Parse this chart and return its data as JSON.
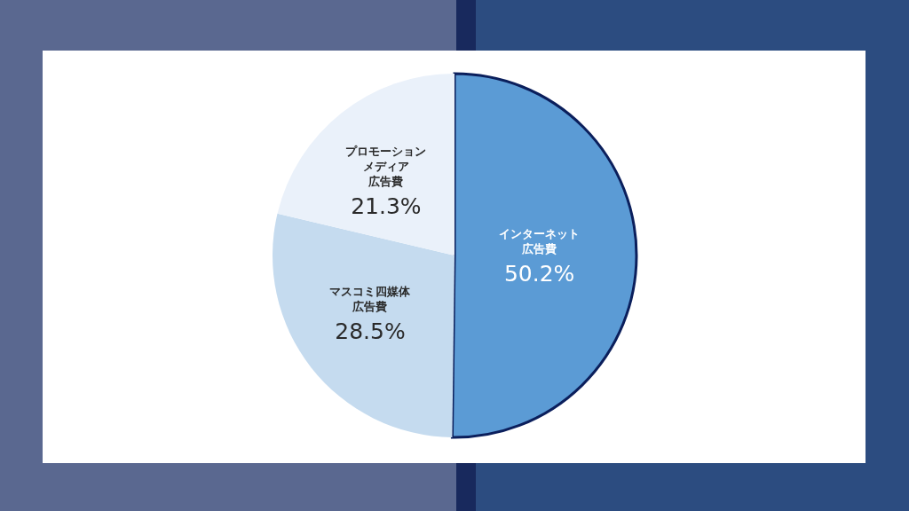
{
  "chart_data": {
    "type": "pie",
    "categories": [
      "インターネット広告費",
      "マスコミ四媒体広告費",
      "プロモーションメディア広告費"
    ],
    "values": [
      50.2,
      28.5,
      21.3
    ],
    "colors": [
      "#5b9bd5",
      "#c5dbef",
      "#eaf1fa"
    ],
    "value_labels": [
      "50.2%",
      "28.5%",
      "21.3%"
    ]
  }
}
